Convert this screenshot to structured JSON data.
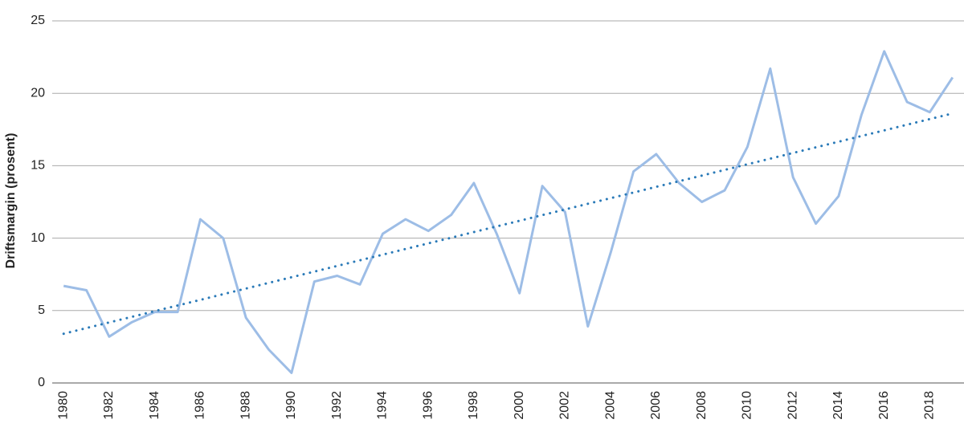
{
  "chart_data": {
    "type": "line",
    "y_label": "Driftsmargin (prosent)",
    "categories": [
      "1980",
      null,
      "1982",
      null,
      "1984",
      null,
      "1986",
      null,
      "1988",
      null,
      "1990",
      null,
      "1992",
      null,
      "1994",
      null,
      "1996",
      null,
      "1998",
      null,
      "2000",
      null,
      "2002",
      null,
      "2004",
      null,
      "2006",
      null,
      "2008",
      null,
      "2010",
      null,
      "2012",
      null,
      "2014",
      null,
      "2016",
      null,
      "2018",
      null
    ],
    "series": [
      {
        "color": "#9dbde6",
        "style": "solid",
        "values": [
          6.7,
          6.4,
          3.2,
          4.2,
          4.9,
          4.9,
          11.3,
          10.0,
          4.5,
          2.3,
          0.7,
          7.0,
          7.4,
          6.8,
          10.3,
          11.3,
          10.5,
          11.6,
          13.8,
          10.3,
          6.2,
          13.6,
          11.8,
          3.9,
          9.0,
          14.6,
          15.8,
          13.8,
          12.5,
          13.3,
          16.3,
          21.7,
          14.2,
          11.0,
          12.9,
          18.5,
          22.9,
          19.4,
          18.7,
          21.1
        ]
      },
      {
        "color": "#2a7ab8",
        "style": "dotted",
        "values": [
          3.4,
          3.79,
          4.18,
          4.57,
          4.96,
          5.35,
          5.74,
          6.13,
          6.52,
          6.91,
          7.3,
          7.69,
          8.08,
          8.47,
          8.86,
          9.25,
          9.64,
          10.03,
          10.42,
          10.81,
          11.2,
          11.59,
          11.98,
          12.37,
          12.76,
          13.15,
          13.54,
          13.93,
          14.32,
          14.71,
          15.1,
          15.49,
          15.88,
          16.27,
          16.66,
          17.05,
          17.44,
          17.83,
          18.22,
          18.61
        ]
      }
    ],
    "ylim": [
      0,
      25
    ],
    "yticks": [
      0,
      5,
      10,
      15,
      20,
      25
    ],
    "grid": true
  }
}
